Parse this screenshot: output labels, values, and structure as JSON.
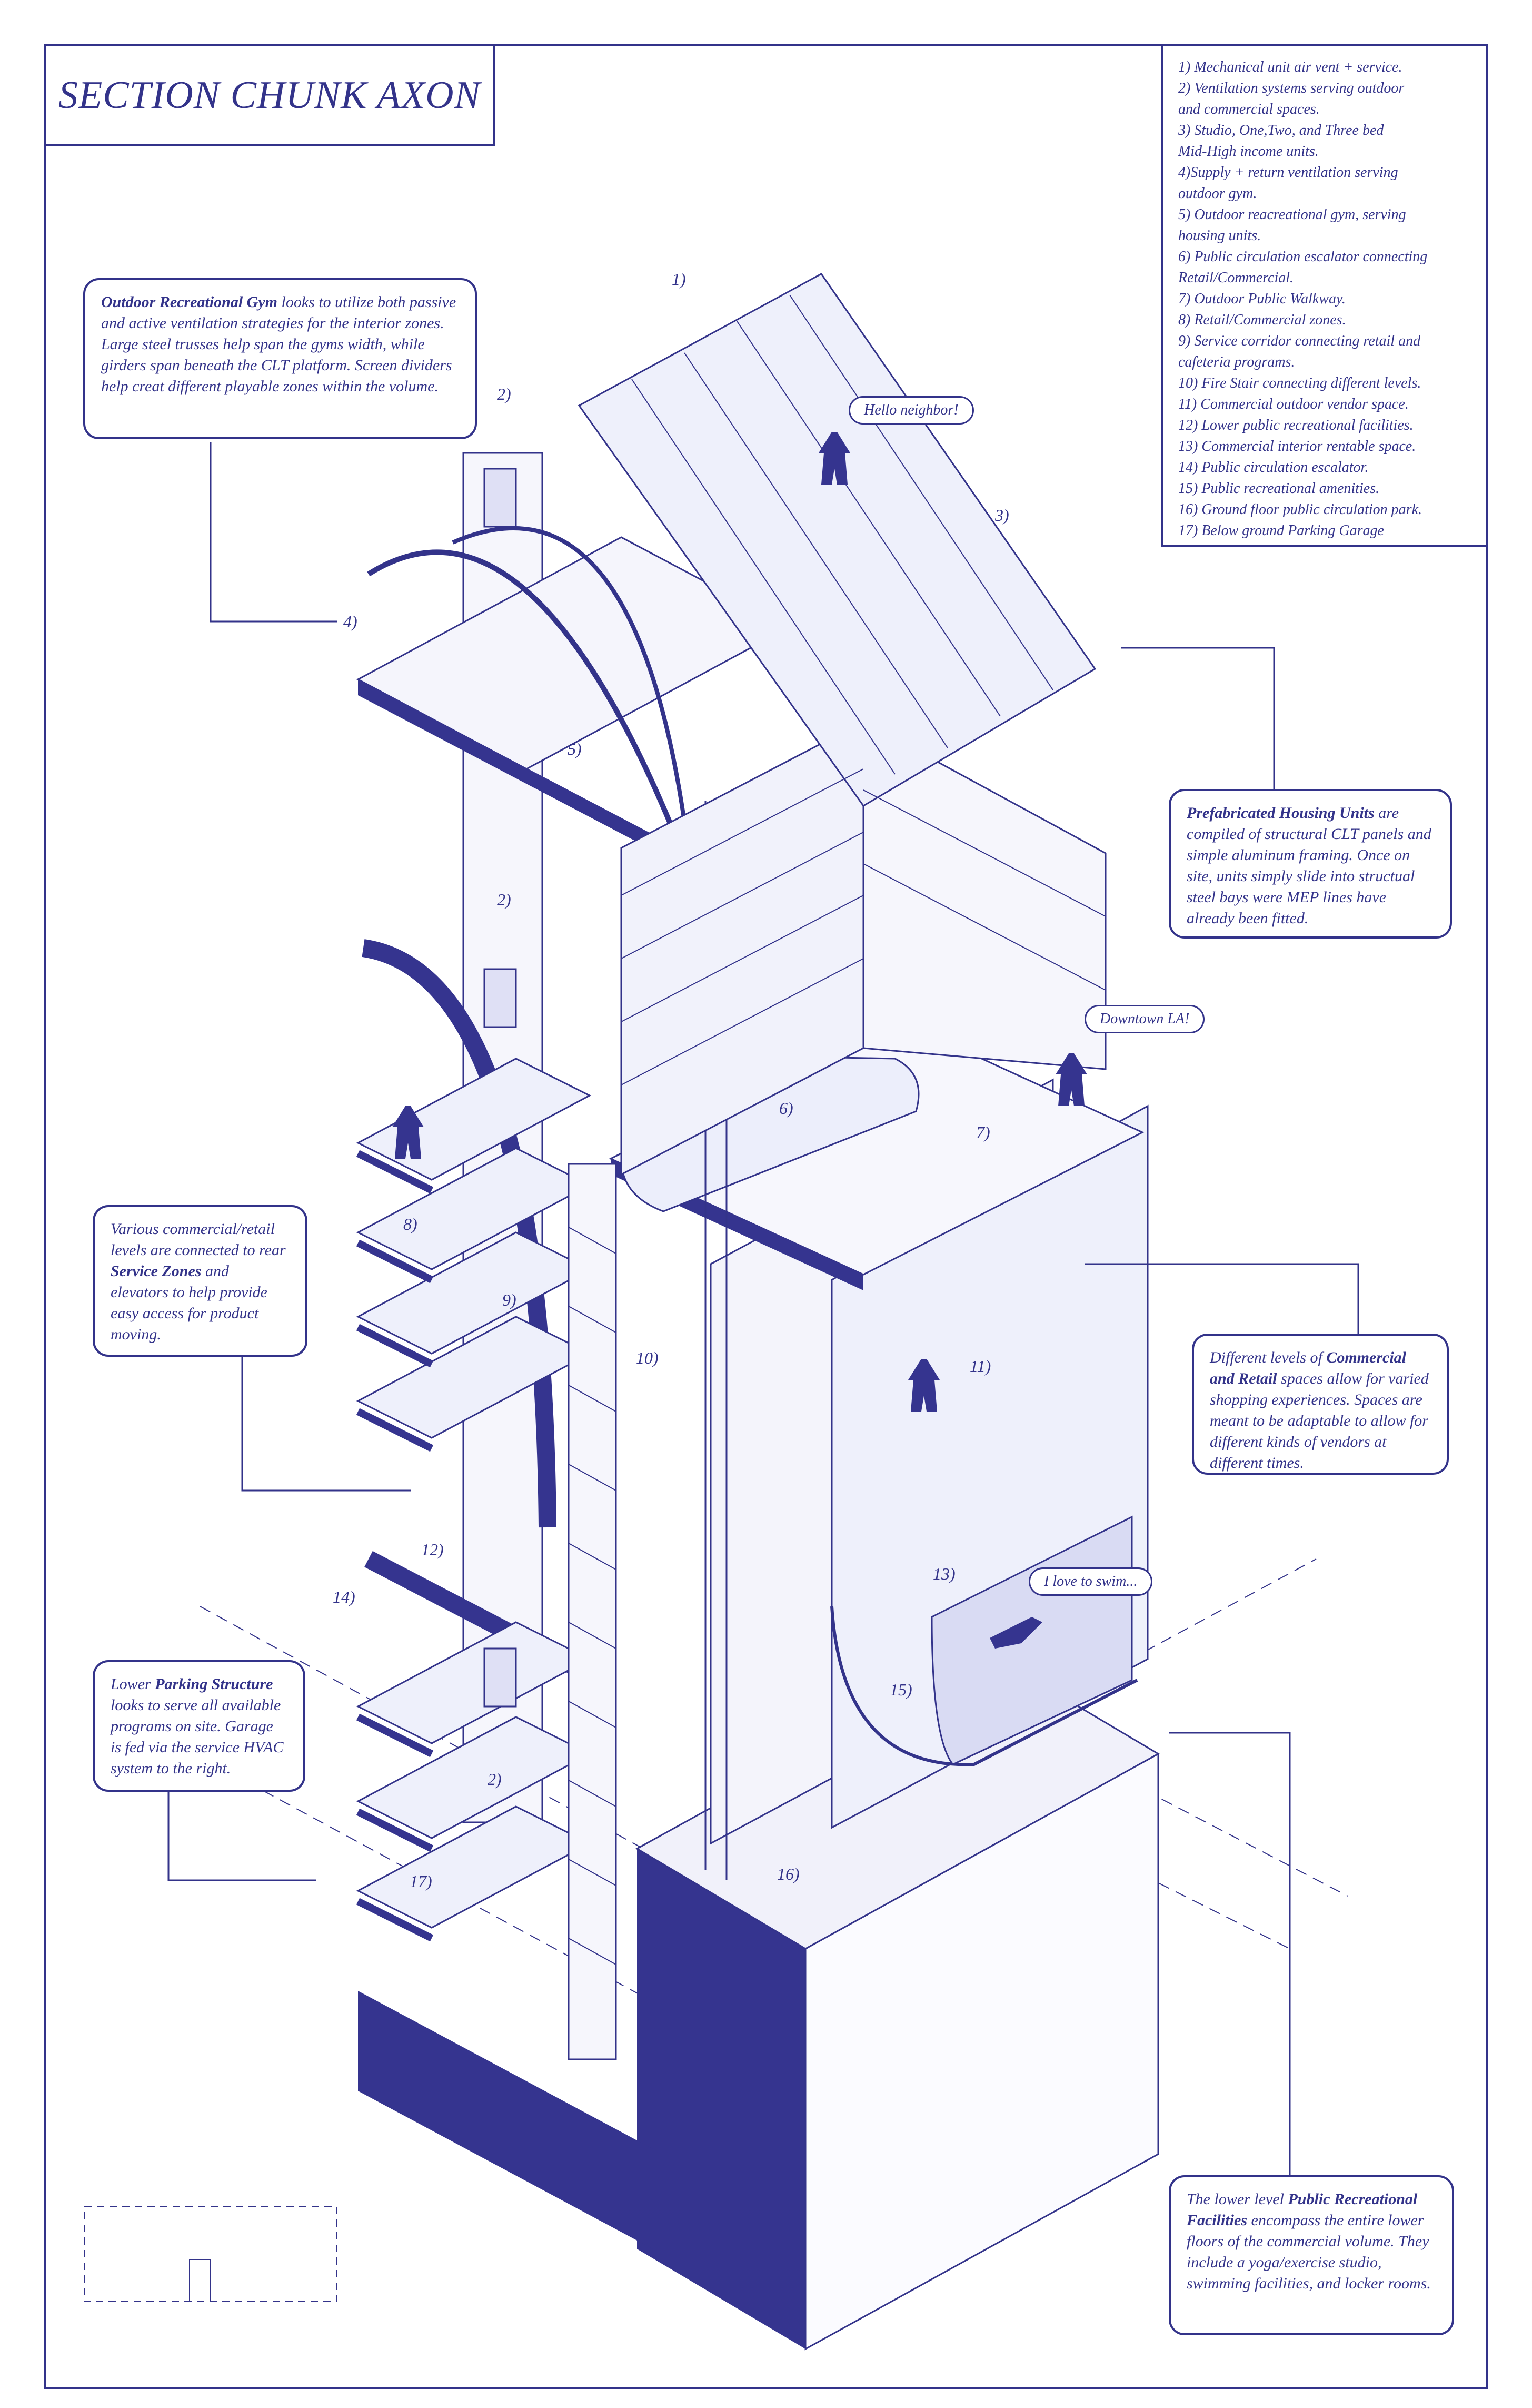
{
  "title": "SECTION CHUNK AXON",
  "legend": [
    "1) Mechanical unit air vent + service.",
    "2) Ventilation systems serving outdoor",
    "and commercial spaces.",
    "3) Studio, One,Two, and Three bed",
    "Mid-High income units.",
    "4)Supply + return ventilation serving",
    "outdoor gym.",
    "5) Outdoor reacreational gym, serving",
    "housing units.",
    "6) Public circulation escalator connecting",
    "Retail/Commercial.",
    "7) Outdoor Public Walkway.",
    "8) Retail/Commercial zones.",
    "9) Service corridor connecting retail and",
    "cafeteria programs.",
    "10) Fire Stair connecting different levels.",
    "11) Commercial outdoor vendor space.",
    "12) Lower public recreational facilities.",
    "13) Commercial interior rentable space.",
    "14) Public circulation escalator.",
    "15) Public recreational amenities.",
    "16) Ground floor public circulation park.",
    "17) Below ground Parking Garage"
  ],
  "callouts": {
    "gym": {
      "bold": "Outdoor Recreational Gym",
      "text": " looks to utilize both passive and active ventilation strategies for the interior zones. Large steel trusses help span the gyms width, while girders span beneath the CLT platform. Screen dividers help creat different playable zones within the volume."
    },
    "housing": {
      "bold": "Prefabricated Housing Units",
      "text": " are compiled of structural CLT panels and simple aluminum framing. Once on site, units simply slide into structual steel bays were MEP lines have already been fitted."
    },
    "service": {
      "pre": "Various commercial/retail levels are connected to rear ",
      "bold": "Service Zones",
      "text": " and elevators to help provide easy access for product moving."
    },
    "commercial": {
      "pre": "Different levels of ",
      "bold": "Commercial and Retail",
      "text": " spaces allow for varied shopping experiences. Spaces are meant to be adaptable to allow for different kinds of vendors at different times."
    },
    "parking": {
      "pre": "Lower ",
      "bold": "Parking Structure",
      "text": " looks to serve all available programs on site. Garage is fed via the service HVAC system to the right."
    },
    "recreation": {
      "pre": "The lower level ",
      "bold": "Public Recreational Facilities",
      "text": " encompass the entire lower floors of the commercial volume. They include a yoga/exercise studio, swimming facilities, and locker rooms."
    }
  },
  "speech": {
    "hello": "Hello neighbor!",
    "downtown": "Downtown LA!",
    "swim": "I love to swim..."
  },
  "labels": {
    "l1": "1)",
    "l2a": "2)",
    "l2b": "2)",
    "l2c": "2)",
    "l3": "3)",
    "l4": "4)",
    "l5": "5)",
    "l6": "6)",
    "l7": "7)",
    "l8": "8)",
    "l9": "9)",
    "l10": "10)",
    "l11": "11)",
    "l12": "12)",
    "l13": "13)",
    "l14": "14)",
    "l15": "15)",
    "l16": "16)",
    "l17": "17)"
  },
  "colors": {
    "ink": "#33338a",
    "fill": "#e9e9f7",
    "dark": "#35348f"
  }
}
